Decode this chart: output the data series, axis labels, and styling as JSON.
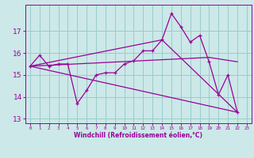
{
  "xlabel": "Windchill (Refroidissement éolien,°C)",
  "xlim": [
    -0.5,
    23.5
  ],
  "ylim": [
    12.8,
    18.2
  ],
  "yticks": [
    13,
    14,
    15,
    16,
    17
  ],
  "xticks": [
    0,
    1,
    2,
    3,
    4,
    5,
    6,
    7,
    8,
    9,
    10,
    11,
    12,
    13,
    14,
    15,
    16,
    17,
    18,
    19,
    20,
    21,
    22,
    23
  ],
  "bg_color": "#cce8e8",
  "line_color": "#990099",
  "grid_color": "#99cccc",
  "line1_x": [
    0,
    1,
    2,
    3,
    4,
    5,
    6,
    7,
    8,
    9,
    10,
    11,
    12,
    13,
    14,
    15,
    16,
    17,
    18,
    19,
    20,
    21,
    22
  ],
  "line1_y": [
    15.4,
    15.9,
    15.4,
    15.5,
    15.5,
    13.7,
    14.3,
    15.0,
    15.1,
    15.1,
    15.5,
    15.65,
    16.1,
    16.1,
    16.6,
    17.8,
    17.2,
    16.5,
    16.8,
    15.6,
    14.1,
    15.0,
    13.3
  ],
  "line2_x": [
    0,
    22
  ],
  "line2_y": [
    15.4,
    13.3
  ],
  "line3_x": [
    0,
    19,
    22
  ],
  "line3_y": [
    15.4,
    15.8,
    15.6
  ],
  "line4_x": [
    0,
    14,
    22
  ],
  "line4_y": [
    15.4,
    16.6,
    13.3
  ]
}
